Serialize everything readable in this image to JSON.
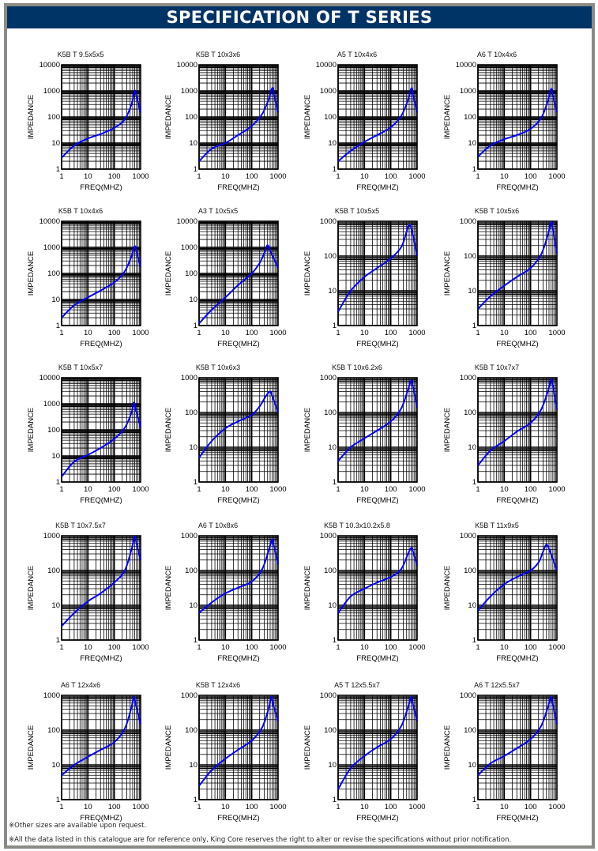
{
  "header": {
    "title": "SPECIFICATION OF T SERIES"
  },
  "notes": [
    "※Other sizes are available upon request.",
    "※All the data listed in this catalogue are for reference only, King Core reserves the right to alter or revise the specifications without prior notification."
  ],
  "colors": {
    "title_bg": "#003366",
    "curve": "#0000ff",
    "frame": "#8c8a85"
  },
  "chart_data": [
    {
      "type": "line",
      "title": "K5B T 9.5x5x5",
      "xlabel": "FREQ(MHZ)",
      "ylabel": "IMPEDANCE",
      "xlim": [
        1,
        1000
      ],
      "ylim": [
        1,
        10000
      ],
      "xticks": [
        "1",
        "10",
        "100",
        "1000"
      ],
      "yticks": [
        "1",
        "10",
        "100",
        "1000",
        "10000"
      ],
      "x": [
        1,
        3,
        10,
        30,
        100,
        250,
        450,
        600,
        700,
        1000
      ],
      "y": [
        2.7,
        8,
        15,
        22,
        38,
        80,
        300,
        1000,
        600,
        150
      ]
    },
    {
      "type": "line",
      "title": "K5B T 10x3x6",
      "xlabel": "FREQ(MHZ)",
      "ylabel": "IMPEDANCE",
      "xlim": [
        1,
        1000
      ],
      "ylim": [
        1,
        10000
      ],
      "xticks": [
        "1",
        "10",
        "100",
        "1000"
      ],
      "yticks": [
        "1",
        "10",
        "100",
        "1000",
        "10000"
      ],
      "x": [
        1,
        3,
        10,
        30,
        100,
        250,
        450,
        600,
        700,
        1000
      ],
      "y": [
        2,
        6,
        10,
        20,
        45,
        130,
        500,
        1300,
        700,
        150
      ]
    },
    {
      "type": "line",
      "title": "A5 T 10x4x6",
      "xlabel": "FREQ(MHZ)",
      "ylabel": "IMPEDANCE",
      "xlim": [
        1,
        1000
      ],
      "ylim": [
        1,
        10000
      ],
      "xticks": [
        "1",
        "10",
        "100",
        "1000"
      ],
      "yticks": [
        "1",
        "10",
        "100",
        "1000",
        "10000"
      ],
      "x": [
        1,
        3,
        10,
        30,
        100,
        250,
        450,
        600,
        700,
        1000
      ],
      "y": [
        2,
        5,
        11,
        20,
        40,
        110,
        450,
        1250,
        700,
        150
      ]
    },
    {
      "type": "line",
      "title": "A6 T 10x4x6",
      "xlabel": "FREQ(MHZ)",
      "ylabel": "IMPEDANCE",
      "xlim": [
        1,
        1000
      ],
      "ylim": [
        1,
        10000
      ],
      "xticks": [
        "1",
        "10",
        "100",
        "1000"
      ],
      "yticks": [
        "1",
        "10",
        "100",
        "1000",
        "10000"
      ],
      "x": [
        1,
        3,
        10,
        30,
        100,
        250,
        450,
        600,
        700,
        1000
      ],
      "y": [
        3,
        8,
        14,
        20,
        35,
        90,
        400,
        1200,
        650,
        150
      ]
    },
    {
      "type": "line",
      "title": "K5B T 10x4x6",
      "xlabel": "FREQ(MHZ)",
      "ylabel": "IMPEDANCE",
      "xlim": [
        1,
        1000
      ],
      "ylim": [
        1,
        10000
      ],
      "xticks": [
        "1",
        "10",
        "100",
        "1000"
      ],
      "yticks": [
        "1",
        "10",
        "100",
        "1000",
        "10000"
      ],
      "x": [
        1,
        3,
        10,
        30,
        100,
        250,
        450,
        600,
        700,
        1000
      ],
      "y": [
        2,
        6,
        12,
        22,
        45,
        120,
        450,
        1100,
        650,
        180
      ]
    },
    {
      "type": "line",
      "title": "A3 T 10x5x5",
      "xlabel": "FREQ(MHZ)",
      "ylabel": "IMPEDANCE",
      "xlim": [
        1,
        1000
      ],
      "ylim": [
        1,
        10000
      ],
      "xticks": [
        "1",
        "10",
        "100",
        "1000"
      ],
      "yticks": [
        "1",
        "10",
        "100",
        "1000",
        "10000"
      ],
      "x": [
        1,
        3,
        10,
        30,
        100,
        200,
        300,
        400,
        550,
        1000
      ],
      "y": [
        1.2,
        4,
        12,
        35,
        100,
        250,
        600,
        1200,
        600,
        160
      ]
    },
    {
      "type": "line",
      "title": "K5B T 10x5x5",
      "xlabel": "FREQ(MHZ)",
      "ylabel": "IMPEDANCE",
      "xlim": [
        1,
        1000
      ],
      "ylim": [
        1,
        1000
      ],
      "xticks": [
        "1",
        "10",
        "100",
        "1000"
      ],
      "yticks": [
        "1",
        "10",
        "100",
        "1000"
      ],
      "x": [
        1,
        3,
        10,
        30,
        100,
        250,
        400,
        500,
        650,
        1000
      ],
      "y": [
        2.5,
        10,
        25,
        45,
        85,
        180,
        500,
        800,
        500,
        100
      ]
    },
    {
      "type": "line",
      "title": "K5B T 10x5x6",
      "xlabel": "FREQ(MHZ)",
      "ylabel": "IMPEDANCE",
      "xlim": [
        1,
        1000
      ],
      "ylim": [
        1,
        1000
      ],
      "xticks": [
        "1",
        "10",
        "100",
        "1000"
      ],
      "yticks": [
        "1",
        "10",
        "100",
        "1000"
      ],
      "x": [
        1,
        3,
        10,
        30,
        100,
        250,
        450,
        600,
        700,
        1000
      ],
      "y": [
        3,
        7,
        14,
        25,
        45,
        110,
        400,
        950,
        600,
        120
      ]
    },
    {
      "type": "line",
      "title": "K5B T 10x5x7",
      "xlabel": "FREQ(MHZ)",
      "ylabel": "IMPEDANCE",
      "xlim": [
        1,
        1000
      ],
      "ylim": [
        1,
        10000
      ],
      "xticks": [
        "1",
        "10",
        "100",
        "1000"
      ],
      "yticks": [
        "1",
        "10",
        "100",
        "1000",
        "10000"
      ],
      "x": [
        1,
        3,
        10,
        30,
        100,
        250,
        450,
        550,
        650,
        1000
      ],
      "y": [
        1.6,
        6,
        11,
        20,
        45,
        120,
        450,
        1100,
        600,
        130
      ]
    },
    {
      "type": "line",
      "title": "K5B T 10x6x3",
      "xlabel": "FREQ(MHZ)",
      "ylabel": "IMPEDANCE",
      "xlim": [
        1,
        1000
      ],
      "ylim": [
        1,
        1000
      ],
      "xticks": [
        "1",
        "10",
        "100",
        "1000"
      ],
      "yticks": [
        "1",
        "10",
        "100",
        "1000"
      ],
      "x": [
        1,
        3,
        10,
        30,
        100,
        200,
        350,
        500,
        600,
        1000
      ],
      "y": [
        5,
        15,
        35,
        55,
        85,
        150,
        300,
        400,
        300,
        100
      ]
    },
    {
      "type": "line",
      "title": "K5B T 10x6.2x6",
      "xlabel": "FREQ(MHZ)",
      "ylabel": "IMPEDANCE",
      "xlim": [
        1,
        1000
      ],
      "ylim": [
        1,
        1000
      ],
      "xticks": [
        "1",
        "10",
        "100",
        "1000"
      ],
      "yticks": [
        "1",
        "10",
        "100",
        "1000"
      ],
      "x": [
        1,
        3,
        10,
        30,
        100,
        250,
        450,
        600,
        700,
        1000
      ],
      "y": [
        4,
        10,
        18,
        30,
        55,
        130,
        450,
        850,
        550,
        140
      ]
    },
    {
      "type": "line",
      "title": "K5B T 10x7x7",
      "xlabel": "FREQ(MHZ)",
      "ylabel": "IMPEDANCE",
      "xlim": [
        1,
        1000
      ],
      "ylim": [
        1,
        1000
      ],
      "xticks": [
        "1",
        "10",
        "100",
        "1000"
      ],
      "yticks": [
        "1",
        "10",
        "100",
        "1000"
      ],
      "x": [
        1,
        3,
        10,
        30,
        100,
        250,
        450,
        600,
        700,
        1000
      ],
      "y": [
        3,
        8,
        15,
        28,
        50,
        120,
        400,
        900,
        600,
        120
      ]
    },
    {
      "type": "line",
      "title": "K5B T 10x7.5x7",
      "xlabel": "FREQ(MHZ)",
      "ylabel": "IMPEDANCE",
      "xlim": [
        1,
        1000
      ],
      "ylim": [
        1,
        1000
      ],
      "xticks": [
        "1",
        "10",
        "100",
        "1000"
      ],
      "yticks": [
        "1",
        "10",
        "100",
        "1000"
      ],
      "x": [
        1,
        3,
        10,
        30,
        100,
        250,
        450,
        600,
        700,
        1000
      ],
      "y": [
        2.5,
        6,
        13,
        22,
        45,
        100,
        400,
        950,
        600,
        200
      ]
    },
    {
      "type": "line",
      "title": "A6 T 10x8x6",
      "xlabel": "FREQ(MHZ)",
      "ylabel": "IMPEDANCE",
      "xlim": [
        1,
        1000
      ],
      "ylim": [
        1,
        1000
      ],
      "xticks": [
        "1",
        "10",
        "100",
        "1000"
      ],
      "yticks": [
        "1",
        "10",
        "100",
        "1000"
      ],
      "x": [
        1,
        3,
        10,
        30,
        100,
        250,
        450,
        600,
        700,
        1000
      ],
      "y": [
        6,
        12,
        22,
        32,
        48,
        110,
        400,
        800,
        500,
        150
      ]
    },
    {
      "type": "line",
      "title": "K5B T 10.3x10.2x5.8",
      "xlabel": "FREQ(MHZ)",
      "ylabel": "IMPEDANCE",
      "xlim": [
        1,
        1000
      ],
      "ylim": [
        1,
        1000
      ],
      "xticks": [
        "1",
        "10",
        "100",
        "1000"
      ],
      "yticks": [
        "1",
        "10",
        "100",
        "1000"
      ],
      "x": [
        1,
        3,
        10,
        30,
        100,
        250,
        450,
        600,
        700,
        1000
      ],
      "y": [
        6,
        18,
        30,
        45,
        65,
        110,
        300,
        450,
        350,
        140
      ]
    },
    {
      "type": "line",
      "title": "K5B T 11x9x5",
      "xlabel": "FREQ(MHZ)",
      "ylabel": "IMPEDANCE",
      "xlim": [
        1,
        1000
      ],
      "ylim": [
        1,
        1000
      ],
      "xticks": [
        "1",
        "10",
        "100",
        "1000"
      ],
      "yticks": [
        "1",
        "10",
        "100",
        "1000"
      ],
      "x": [
        1,
        3,
        10,
        30,
        100,
        200,
        300,
        400,
        550,
        1000
      ],
      "y": [
        7,
        18,
        40,
        65,
        100,
        170,
        350,
        550,
        350,
        100
      ]
    },
    {
      "type": "line",
      "title": "A6 T 12x4x6",
      "xlabel": "FREQ(MHZ)",
      "ylabel": "IMPEDANCE",
      "xlim": [
        1,
        1000
      ],
      "ylim": [
        1,
        1000
      ],
      "xticks": [
        "1",
        "10",
        "100",
        "1000"
      ],
      "yticks": [
        "1",
        "10",
        "100",
        "1000"
      ],
      "x": [
        1,
        3,
        10,
        30,
        100,
        250,
        450,
        550,
        650,
        1000
      ],
      "y": [
        5,
        10,
        17,
        27,
        45,
        110,
        450,
        900,
        550,
        150
      ]
    },
    {
      "type": "line",
      "title": "K5B T 12x4x6",
      "xlabel": "FREQ(MHZ)",
      "ylabel": "IMPEDANCE",
      "xlim": [
        1,
        1000
      ],
      "ylim": [
        1,
        1000
      ],
      "xticks": [
        "1",
        "10",
        "100",
        "1000"
      ],
      "yticks": [
        "1",
        "10",
        "100",
        "1000"
      ],
      "x": [
        1,
        3,
        10,
        30,
        100,
        250,
        450,
        550,
        650,
        1000
      ],
      "y": [
        2.5,
        7,
        15,
        27,
        50,
        120,
        450,
        900,
        550,
        180
      ]
    },
    {
      "type": "line",
      "title": "A5 T 12x5.5x7",
      "xlabel": "FREQ(MHZ)",
      "ylabel": "IMPEDANCE",
      "xlim": [
        1,
        1000
      ],
      "ylim": [
        1,
        1000
      ],
      "xticks": [
        "1",
        "10",
        "100",
        "1000"
      ],
      "yticks": [
        "1",
        "10",
        "100",
        "1000"
      ],
      "x": [
        1,
        3,
        10,
        30,
        100,
        250,
        450,
        600,
        700,
        1000
      ],
      "y": [
        2,
        8,
        18,
        32,
        55,
        130,
        450,
        900,
        550,
        180
      ]
    },
    {
      "type": "line",
      "title": "A6 T 12x5.5x7",
      "xlabel": "FREQ(MHZ)",
      "ylabel": "IMPEDANCE",
      "xlim": [
        1,
        1000
      ],
      "ylim": [
        1,
        1000
      ],
      "xticks": [
        "1",
        "10",
        "100",
        "1000"
      ],
      "yticks": [
        "1",
        "10",
        "100",
        "1000"
      ],
      "x": [
        1,
        3,
        10,
        30,
        100,
        250,
        450,
        600,
        700,
        1000
      ],
      "y": [
        5,
        11,
        18,
        30,
        55,
        130,
        450,
        900,
        550,
        150
      ]
    }
  ]
}
